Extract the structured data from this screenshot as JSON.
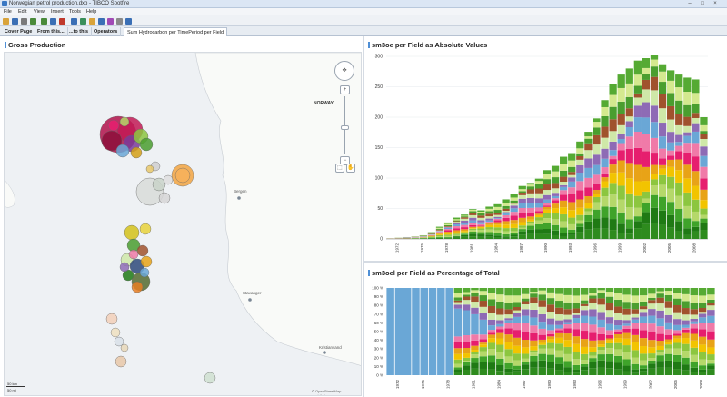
{
  "window": {
    "title": "Norwegian petrol production.dxp - TIBCO Spotfire",
    "controls": [
      "–",
      "□",
      "×"
    ]
  },
  "menu": [
    "File",
    "Edit",
    "View",
    "Insert",
    "Tools",
    "Help"
  ],
  "toolbar": {
    "icons": [
      "open-icon",
      "save-icon",
      "print-icon",
      "undo-icon",
      "redo-icon",
      "filter-icon",
      "table-icon",
      "bar-chart-icon",
      "line-chart-icon",
      "scatter-icon",
      "map-icon",
      "pie-icon",
      "settings-icon",
      "layout-icon"
    ],
    "colors": [
      "#d9a33a",
      "#3a6fb5",
      "#7a7a7a",
      "#4a8a3a",
      "#4a8a3a",
      "#3a6fb5",
      "#c0392b",
      "#3a6fb5",
      "#3a8f5a",
      "#d9a33a",
      "#3a6fb5",
      "#a04ab5",
      "#8a8a8a",
      "#3a6fb5"
    ]
  },
  "tabs": [
    {
      "label": "Cover Page",
      "active": false
    },
    {
      "label": "From this...",
      "active": false
    },
    {
      "label": "...to this",
      "active": false
    },
    {
      "label": "Operators",
      "active": false
    },
    {
      "label": "Sum Hydrocarbon per TimePeriod per Field",
      "active": true
    }
  ],
  "map_panel": {
    "title": "Gross Production",
    "labels": [
      "NORWAY",
      "Bergen",
      "Stavanger",
      "Kristiansand"
    ],
    "attribution": "© OpenStreetMap contributors",
    "scale": [
      "50 km",
      "50 mi"
    ],
    "zoom_in": "+",
    "zoom_out": "−"
  },
  "top_chart_panel": {
    "title": "sm3oe per Field as Absolute Values"
  },
  "bottom_chart_panel": {
    "title": "sm3oel per Field as Percentage of Total"
  },
  "palette": [
    "#2e8b1e",
    "#1f7a14",
    "#3fa32a",
    "#b5d86a",
    "#8cc63f",
    "#f2c400",
    "#e8a317",
    "#e61e6e",
    "#f07aa8",
    "#6aa7d6",
    "#8e6bb5",
    "#cfe8a8",
    "#a0522d",
    "#4a9e2f",
    "#d4e98f",
    "#55aa33"
  ],
  "chart_data": [
    {
      "type": "bar",
      "stacked": true,
      "title": "sm3oe per Field as Absolute Values",
      "x": [
        1971,
        1972,
        1973,
        1974,
        1975,
        1976,
        1977,
        1978,
        1979,
        1980,
        1981,
        1982,
        1983,
        1984,
        1985,
        1986,
        1987,
        1988,
        1989,
        1990,
        1991,
        1992,
        1993,
        1994,
        1995,
        1996,
        1997,
        1998,
        1999,
        2000,
        2001,
        2002,
        2003,
        2004,
        2005,
        2006,
        2007,
        2008,
        2009
      ],
      "tick_labels": [
        "1972",
        "1975",
        "1978",
        "1981",
        "1984",
        "1987",
        "1990",
        "1993",
        "1996",
        "1999",
        "2002",
        "2005",
        "2008"
      ],
      "tick_years": [
        1972,
        1975,
        1978,
        1981,
        1984,
        1987,
        1990,
        1993,
        1996,
        1999,
        2002,
        2005,
        2008
      ],
      "totals": [
        1,
        2,
        3,
        4,
        6,
        11,
        20,
        27,
        35,
        40,
        49,
        47,
        53,
        57,
        65,
        74,
        87,
        92,
        99,
        113,
        120,
        135,
        141,
        160,
        176,
        198,
        228,
        254,
        270,
        280,
        293,
        297,
        302,
        287,
        277,
        270,
        265,
        262,
        200
      ],
      "ylim": [
        0,
        300
      ],
      "yticks": [
        0,
        50,
        100,
        150,
        200,
        250,
        300
      ]
    },
    {
      "type": "bar",
      "stacked": true,
      "normalized": true,
      "title": "sm3oel per Field as Percentage of Total",
      "x": [
        1971,
        1972,
        1973,
        1974,
        1975,
        1976,
        1977,
        1978,
        1979,
        1980,
        1981,
        1982,
        1983,
        1984,
        1985,
        1986,
        1987,
        1988,
        1989,
        1990,
        1991,
        1992,
        1993,
        1994,
        1995,
        1996,
        1997,
        1998,
        1999,
        2000,
        2001,
        2002,
        2003,
        2004,
        2005,
        2006,
        2007,
        2008,
        2009
      ],
      "tick_labels": [
        "1972",
        "1975",
        "1978",
        "1981",
        "1984",
        "1987",
        "1990",
        "1993",
        "1996",
        "1999",
        "2002",
        "2005",
        "2008"
      ],
      "tick_years": [
        1972,
        1975,
        1978,
        1981,
        1984,
        1987,
        1990,
        1993,
        1996,
        1999,
        2002,
        2005,
        2008
      ],
      "ylim": [
        0,
        100
      ],
      "yticks": [
        "0 %",
        "10 %",
        "20 %",
        "30 %",
        "40 %",
        "50 %",
        "60 %",
        "70 %",
        "80 %",
        "90 %",
        "100 %"
      ]
    }
  ]
}
